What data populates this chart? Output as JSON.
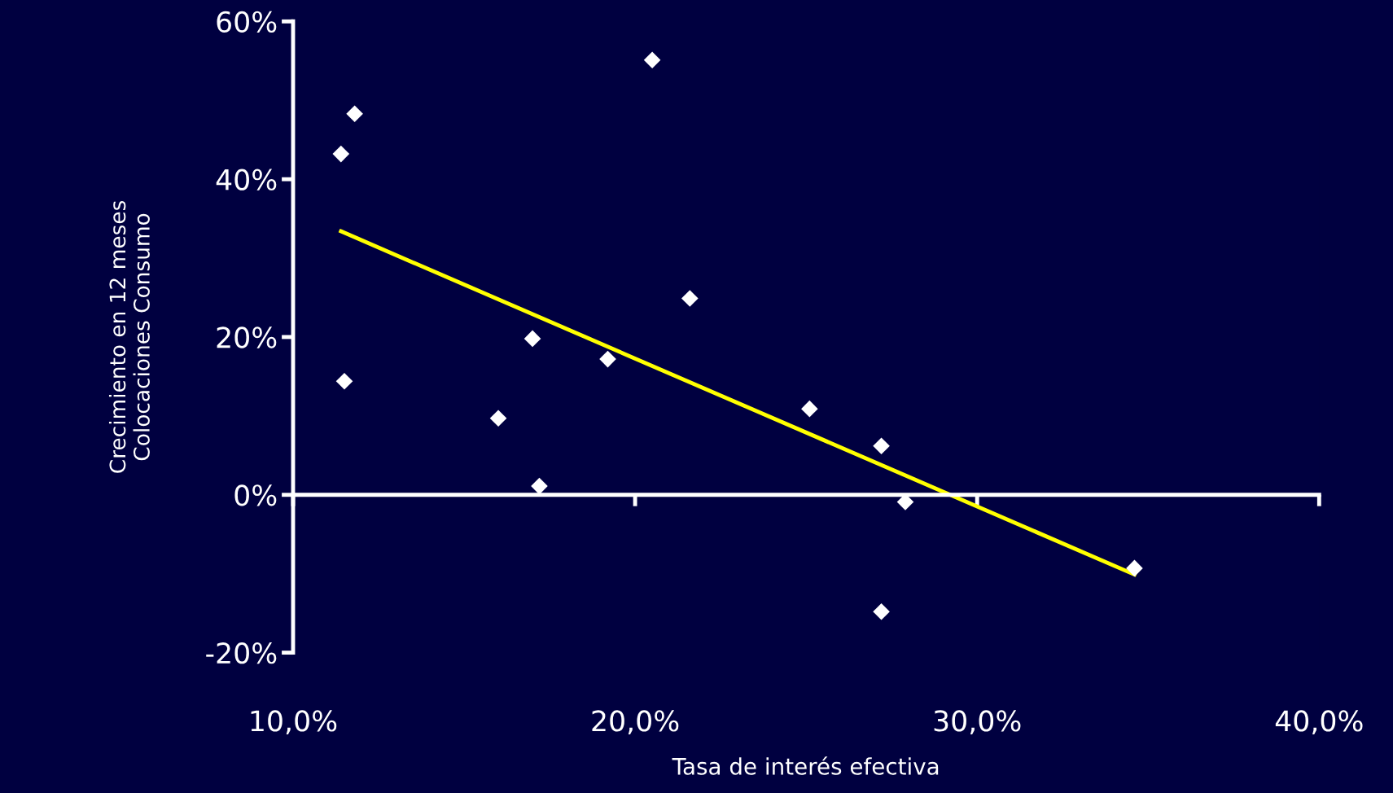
{
  "chart_data": {
    "type": "scatter",
    "xlabel": "Tasa de interés efectiva",
    "ylabel": "Crecimiento en 12 meses\nColocaciones Consumo",
    "x": [
      11.4,
      11.8,
      11.5,
      20.5,
      21.6,
      17.0,
      19.2,
      16.0,
      17.2,
      25.1,
      27.2,
      27.9,
      27.2,
      34.6
    ],
    "series": [
      {
        "color": "#ffffff",
        "marker": "diamond",
        "values": [
          43.2,
          48.3,
          14.4,
          55.1,
          24.9,
          19.8,
          17.2,
          9.7,
          1.1,
          10.9,
          6.2,
          -0.9,
          -14.8,
          -9.3
        ]
      },
      {
        "type": "line",
        "color": "#ffff00",
        "marker": "none",
        "line_style": "solid",
        "x": [
          11.4,
          34.6
        ],
        "values": [
          33.4,
          -10.1
        ]
      }
    ],
    "xlim": [
      10,
      40
    ],
    "ylim": [
      -20,
      60
    ],
    "xticks": [
      {
        "value": 10,
        "label": "10,0%"
      },
      {
        "value": 20,
        "label": "20,0%"
      },
      {
        "value": 30,
        "label": "30,0%"
      },
      {
        "value": 40,
        "label": "40,0%"
      }
    ],
    "yticks": [
      {
        "value": -20,
        "label": "-20%"
      },
      {
        "value": 0,
        "label": "0%"
      },
      {
        "value": 20,
        "label": "20%"
      },
      {
        "value": 40,
        "label": "40%"
      },
      {
        "value": 60,
        "label": "60%"
      }
    ],
    "legend": false
  }
}
